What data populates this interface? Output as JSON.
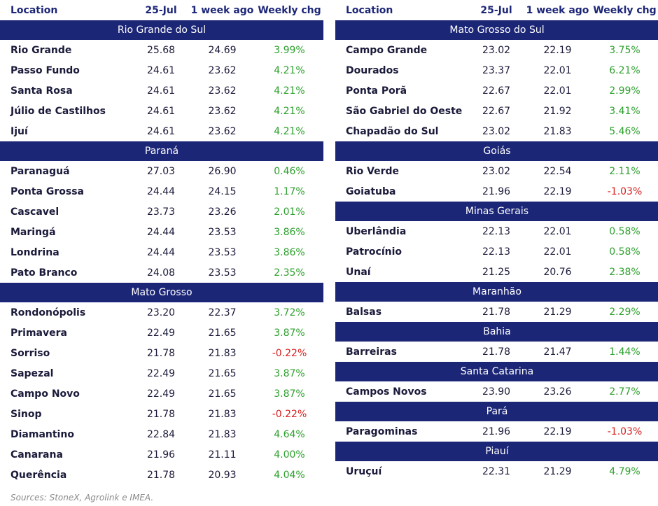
{
  "left": {
    "header": [
      "Location",
      "25-Jul",
      "1 week ago",
      "Weekly chg"
    ],
    "sections": [
      {
        "title": "Rio Grande do Sul",
        "rows": [
          [
            "Rio Grande",
            "25.68",
            "24.69",
            "3.99%"
          ],
          [
            "Passo Fundo",
            "24.61",
            "23.62",
            "4.21%"
          ],
          [
            "Santa Rosa",
            "24.61",
            "23.62",
            "4.21%"
          ],
          [
            "Júlio de Castilhos",
            "24.61",
            "23.62",
            "4.21%"
          ],
          [
            "Ijuí",
            "24.61",
            "23.62",
            "4.21%"
          ]
        ]
      },
      {
        "title": "Paraná",
        "rows": [
          [
            "Paranaguá",
            "27.03",
            "26.90",
            "0.46%"
          ],
          [
            "Ponta Grossa",
            "24.44",
            "24.15",
            "1.17%"
          ],
          [
            "Cascavel",
            "23.73",
            "23.26",
            "2.01%"
          ],
          [
            "Maringá",
            "24.44",
            "23.53",
            "3.86%"
          ],
          [
            "Londrina",
            "24.44",
            "23.53",
            "3.86%"
          ],
          [
            "Pato Branco",
            "24.08",
            "23.53",
            "2.35%"
          ]
        ]
      },
      {
        "title": "Mato Grosso",
        "rows": [
          [
            "Rondonópolis",
            "23.20",
            "22.37",
            "3.72%"
          ],
          [
            "Primavera",
            "22.49",
            "21.65",
            "3.87%"
          ],
          [
            "Sorriso",
            "21.78",
            "21.83",
            "-0.22%"
          ],
          [
            "Sapezal",
            "22.49",
            "21.65",
            "3.87%"
          ],
          [
            "Campo Novo",
            "22.49",
            "21.65",
            "3.87%"
          ],
          [
            "Sinop",
            "21.78",
            "21.83",
            "-0.22%"
          ],
          [
            "Diamantino",
            "22.84",
            "21.83",
            "4.64%"
          ],
          [
            "Canarana",
            "21.96",
            "21.11",
            "4.00%"
          ],
          [
            "Querência",
            "21.78",
            "20.93",
            "4.04%"
          ]
        ]
      }
    ]
  },
  "right": {
    "header": [
      "Location",
      "25-Jul",
      "1 week ago",
      "Weekly chg"
    ],
    "sections": [
      {
        "title": "Mato Grosso do Sul",
        "rows": [
          [
            "Campo Grande",
            "23.02",
            "22.19",
            "3.75%"
          ],
          [
            "Dourados",
            "23.37",
            "22.01",
            "6.21%"
          ],
          [
            "Ponta Porã",
            "22.67",
            "22.01",
            "2.99%"
          ],
          [
            "São Gabriel do Oeste",
            "22.67",
            "21.92",
            "3.41%"
          ],
          [
            "Chapadão do Sul",
            "23.02",
            "21.83",
            "5.46%"
          ]
        ]
      },
      {
        "title": "Goiás",
        "rows": [
          [
            "Rio Verde",
            "23.02",
            "22.54",
            "2.11%"
          ],
          [
            "Goiatuba",
            "21.96",
            "22.19",
            "-1.03%"
          ]
        ]
      },
      {
        "title": "Minas Gerais",
        "rows": [
          [
            "Uberlândia",
            "22.13",
            "22.01",
            "0.58%"
          ],
          [
            "Patrocínio",
            "22.13",
            "22.01",
            "0.58%"
          ],
          [
            "Unaí",
            "21.25",
            "20.76",
            "2.38%"
          ]
        ]
      },
      {
        "title": "Maranhão",
        "rows": [
          [
            "Balsas",
            "21.78",
            "21.29",
            "2.29%"
          ]
        ]
      },
      {
        "title": "Bahia",
        "rows": [
          [
            "Barreiras",
            "21.78",
            "21.47",
            "1.44%"
          ]
        ]
      },
      {
        "title": "Santa Catarina",
        "rows": [
          [
            "Campos Novos",
            "23.90",
            "23.26",
            "2.77%"
          ]
        ]
      },
      {
        "title": "Pará",
        "rows": [
          [
            "Paragominas",
            "21.96",
            "22.19",
            "-1.03%"
          ]
        ]
      },
      {
        "title": "Piauí",
        "rows": [
          [
            "Uruçuí",
            "22.31",
            "21.29",
            "4.79%"
          ]
        ]
      }
    ]
  },
  "source": "Sources: StoneX, Agrolink e IMEA."
}
